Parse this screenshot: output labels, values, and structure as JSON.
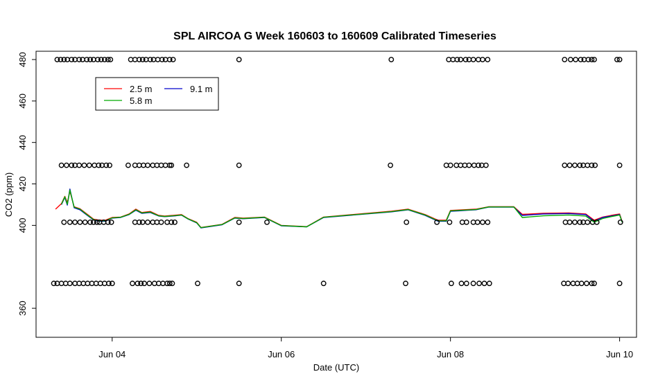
{
  "chart_data": {
    "type": "line",
    "title": "SPL AIRCOA G  Week 160603 to 160609  Calibrated Timeseries",
    "xlabel": "Date (UTC)",
    "ylabel": "CO2 (ppm)",
    "x_unit": "days",
    "x_ticks": [
      {
        "label": "Jun 04",
        "value": 4
      },
      {
        "label": "Jun 06",
        "value": 6
      },
      {
        "label": "Jun 08",
        "value": 8
      },
      {
        "label": "Jun 10",
        "value": 10
      }
    ],
    "xlim": [
      3.1,
      10.2
    ],
    "ylim": [
      346,
      484
    ],
    "y_ticks": [
      360,
      400,
      420,
      440,
      460,
      480
    ],
    "legend_position": "top-left",
    "legend_layout": [
      [
        "2.5 m",
        "9.1 m"
      ],
      [
        "5.8 m"
      ]
    ],
    "series": [
      {
        "name": "2.5 m",
        "color": "#ff0000",
        "points": [
          [
            3.33,
            407.8
          ],
          [
            3.4,
            410.5
          ],
          [
            3.44,
            414.0
          ],
          [
            3.47,
            411.0
          ],
          [
            3.5,
            416.5
          ],
          [
            3.55,
            409.0
          ],
          [
            3.62,
            408.0
          ],
          [
            3.7,
            405.5
          ],
          [
            3.78,
            403.0
          ],
          [
            3.85,
            402.5
          ],
          [
            3.92,
            402.5
          ],
          [
            4.0,
            403.8
          ],
          [
            4.1,
            404.0
          ],
          [
            4.2,
            405.5
          ],
          [
            4.28,
            407.8
          ],
          [
            4.35,
            406.2
          ],
          [
            4.45,
            406.7
          ],
          [
            4.55,
            404.8
          ],
          [
            4.62,
            404.5
          ],
          [
            4.72,
            404.8
          ],
          [
            4.82,
            405.2
          ],
          [
            4.9,
            403.2
          ],
          [
            5.0,
            401.5
          ],
          [
            5.05,
            399.0
          ],
          [
            5.3,
            400.5
          ],
          [
            5.45,
            403.8
          ],
          [
            5.55,
            403.5
          ],
          [
            5.8,
            404.0
          ],
          [
            6.0,
            400.0
          ],
          [
            6.3,
            399.4
          ],
          [
            6.5,
            404.0
          ],
          [
            7.3,
            406.8
          ],
          [
            7.5,
            407.8
          ],
          [
            7.7,
            405.2
          ],
          [
            7.85,
            402.5
          ],
          [
            7.95,
            402.5
          ],
          [
            8.0,
            407.2
          ],
          [
            8.1,
            407.4
          ],
          [
            8.2,
            407.6
          ],
          [
            8.3,
            407.8
          ],
          [
            8.45,
            409.0
          ],
          [
            8.75,
            409.0
          ],
          [
            8.85,
            405.3
          ],
          [
            9.1,
            405.8
          ],
          [
            9.4,
            406.0
          ],
          [
            9.6,
            405.5
          ],
          [
            9.7,
            402.5
          ],
          [
            9.8,
            404.0
          ],
          [
            9.9,
            404.8
          ],
          [
            10.0,
            405.5
          ],
          [
            10.03,
            401.8
          ]
        ]
      },
      {
        "name": "9.1 m",
        "color": "#0000cc",
        "points": [
          [
            3.4,
            410.0
          ],
          [
            3.44,
            413.5
          ],
          [
            3.47,
            409.8
          ],
          [
            3.5,
            417.5
          ],
          [
            3.55,
            408.5
          ],
          [
            3.62,
            407.5
          ],
          [
            3.7,
            405.0
          ],
          [
            3.78,
            402.6
          ],
          [
            3.85,
            402.0
          ],
          [
            3.92,
            402.0
          ],
          [
            4.0,
            403.5
          ],
          [
            4.1,
            403.8
          ],
          [
            4.2,
            405.2
          ],
          [
            4.28,
            407.3
          ],
          [
            4.35,
            405.8
          ],
          [
            4.45,
            406.2
          ],
          [
            4.55,
            404.5
          ],
          [
            4.62,
            404.2
          ],
          [
            4.72,
            404.5
          ],
          [
            4.82,
            404.9
          ],
          [
            4.9,
            403.0
          ],
          [
            5.0,
            401.2
          ],
          [
            5.05,
            398.8
          ],
          [
            5.3,
            400.3
          ],
          [
            5.45,
            403.5
          ],
          [
            5.55,
            403.2
          ],
          [
            5.8,
            403.8
          ],
          [
            6.0,
            399.8
          ],
          [
            6.3,
            399.3
          ],
          [
            6.5,
            403.8
          ],
          [
            7.3,
            406.5
          ],
          [
            7.5,
            407.5
          ],
          [
            7.7,
            404.8
          ],
          [
            7.85,
            402.0
          ],
          [
            7.95,
            402.0
          ],
          [
            8.0,
            406.8
          ],
          [
            8.1,
            407.0
          ],
          [
            8.2,
            407.3
          ],
          [
            8.3,
            407.5
          ],
          [
            8.45,
            408.8
          ],
          [
            8.75,
            408.8
          ],
          [
            8.85,
            404.8
          ],
          [
            9.1,
            405.5
          ],
          [
            9.4,
            405.7
          ],
          [
            9.6,
            405.2
          ],
          [
            9.7,
            402.0
          ],
          [
            9.8,
            403.8
          ],
          [
            9.9,
            404.5
          ],
          [
            10.0,
            405.2
          ],
          [
            10.03,
            401.5
          ]
        ]
      },
      {
        "name": "5.8 m",
        "color": "#00aa00",
        "points": [
          [
            3.4,
            410.2
          ],
          [
            3.44,
            413.8
          ],
          [
            3.47,
            410.2
          ],
          [
            3.5,
            417.0
          ],
          [
            3.55,
            408.8
          ],
          [
            3.62,
            407.8
          ],
          [
            3.7,
            405.2
          ],
          [
            3.78,
            402.8
          ],
          [
            3.85,
            402.2
          ],
          [
            3.92,
            402.2
          ],
          [
            4.0,
            403.6
          ],
          [
            4.1,
            403.9
          ],
          [
            4.2,
            405.3
          ],
          [
            4.28,
            407.5
          ],
          [
            4.35,
            406.0
          ],
          [
            4.45,
            406.4
          ],
          [
            4.55,
            404.6
          ],
          [
            4.62,
            404.3
          ],
          [
            4.72,
            404.6
          ],
          [
            4.82,
            405.0
          ],
          [
            4.9,
            403.1
          ],
          [
            5.0,
            401.3
          ],
          [
            5.05,
            398.9
          ],
          [
            5.3,
            400.4
          ],
          [
            5.45,
            403.6
          ],
          [
            5.55,
            403.3
          ],
          [
            5.8,
            403.9
          ],
          [
            6.0,
            399.9
          ],
          [
            6.3,
            399.3
          ],
          [
            6.5,
            403.9
          ],
          [
            7.3,
            406.6
          ],
          [
            7.5,
            407.6
          ],
          [
            7.7,
            405.0
          ],
          [
            7.85,
            402.2
          ],
          [
            7.95,
            402.2
          ],
          [
            8.0,
            407.0
          ],
          [
            8.1,
            407.2
          ],
          [
            8.2,
            407.4
          ],
          [
            8.3,
            407.6
          ],
          [
            8.45,
            408.9
          ],
          [
            8.75,
            408.9
          ],
          [
            8.85,
            403.8
          ],
          [
            9.1,
            404.6
          ],
          [
            9.4,
            405.0
          ],
          [
            9.6,
            404.5
          ],
          [
            9.7,
            401.5
          ],
          [
            9.8,
            403.3
          ],
          [
            9.9,
            404.2
          ],
          [
            10.0,
            405.0
          ],
          [
            10.03,
            401.5
          ]
        ]
      }
    ],
    "reference_points": [
      {
        "level": 480,
        "x": [
          3.35,
          3.39,
          3.43,
          3.47,
          3.52,
          3.56,
          3.61,
          3.65,
          3.7,
          3.74,
          3.78,
          3.83,
          3.87,
          3.91,
          3.95,
          3.98,
          4.22,
          4.27,
          4.32,
          4.36,
          4.4,
          4.45,
          4.49,
          4.54,
          4.59,
          4.63,
          4.68,
          4.72,
          5.5,
          7.3,
          7.98,
          8.03,
          8.08,
          8.12,
          8.18,
          8.22,
          8.27,
          8.33,
          8.38,
          8.44,
          9.35,
          9.42,
          9.48,
          9.54,
          9.58,
          9.63,
          9.67,
          9.7,
          9.97,
          10.0
        ]
      },
      {
        "level": 429,
        "x": [
          3.4,
          3.46,
          3.52,
          3.56,
          3.61,
          3.67,
          3.73,
          3.79,
          3.84,
          3.88,
          3.93,
          3.97,
          4.19,
          4.27,
          4.32,
          4.37,
          4.42,
          4.48,
          4.53,
          4.58,
          4.63,
          4.68,
          4.7,
          4.88,
          5.5,
          7.29,
          7.95,
          8.0,
          8.07,
          8.12,
          8.17,
          8.22,
          8.28,
          8.33,
          8.37,
          8.42,
          9.35,
          9.41,
          9.47,
          9.53,
          9.57,
          9.62,
          9.67,
          9.71,
          10.0
        ]
      },
      {
        "level": 401.5,
        "x": [
          3.43,
          3.5,
          3.56,
          3.62,
          3.68,
          3.74,
          3.78,
          3.82,
          3.85,
          3.9,
          3.95,
          3.99,
          4.27,
          4.32,
          4.36,
          4.42,
          4.48,
          4.53,
          4.58,
          4.65,
          4.7,
          4.74,
          5.5,
          5.83,
          7.48,
          7.84,
          7.99,
          8.14,
          8.19,
          8.27,
          8.32,
          8.38,
          8.44,
          9.36,
          9.41,
          9.47,
          9.53,
          9.57,
          9.62,
          9.68,
          9.73,
          10.01
        ]
      },
      {
        "level": 372,
        "x": [
          3.31,
          3.35,
          3.4,
          3.45,
          3.5,
          3.56,
          3.61,
          3.66,
          3.71,
          3.76,
          3.81,
          3.86,
          3.91,
          3.96,
          4.0,
          4.24,
          4.3,
          4.34,
          4.38,
          4.44,
          4.5,
          4.55,
          4.6,
          4.65,
          4.68,
          4.71,
          5.01,
          5.5,
          6.5,
          7.47,
          8.01,
          8.13,
          8.19,
          8.27,
          8.34,
          8.4,
          8.46,
          9.34,
          9.39,
          9.45,
          9.5,
          9.55,
          9.61,
          9.67,
          9.7,
          10.0
        ]
      }
    ]
  }
}
